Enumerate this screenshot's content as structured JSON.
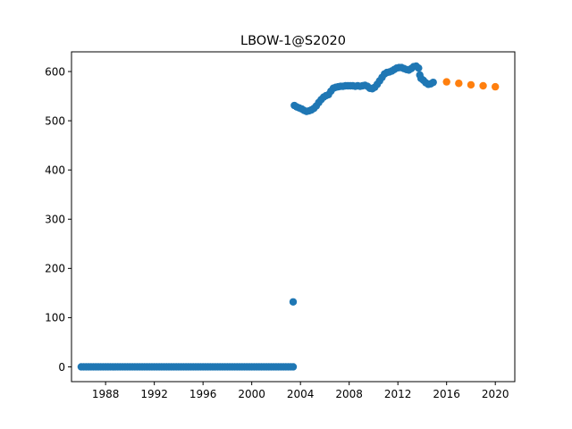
{
  "chart_data": {
    "type": "scatter",
    "title": "LBOW-1@S2020",
    "xlabel": "",
    "ylabel": "",
    "xlim": [
      1985.2,
      2021.6
    ],
    "ylim": [
      -30,
      640
    ],
    "x_ticks": [
      1988,
      1992,
      1996,
      2000,
      2004,
      2008,
      2012,
      2016,
      2020
    ],
    "y_ticks": [
      0,
      100,
      200,
      300,
      400,
      500,
      600
    ],
    "grid": false,
    "legend": "none",
    "colors": [
      "#1f77b4",
      "#ff7f0e"
    ],
    "series": [
      {
        "points": [
          [
            1986.0,
            0
          ],
          [
            1986.2,
            0
          ],
          [
            1986.4,
            0
          ],
          [
            1986.6,
            0
          ],
          [
            1986.8,
            0
          ],
          [
            1987.0,
            0
          ],
          [
            1987.2,
            0
          ],
          [
            1987.4,
            0
          ],
          [
            1987.6,
            0
          ],
          [
            1987.8,
            0
          ],
          [
            1988.0,
            0
          ],
          [
            1988.2,
            0
          ],
          [
            1988.4,
            0
          ],
          [
            1988.6,
            0
          ],
          [
            1988.8,
            0
          ],
          [
            1989.0,
            0
          ],
          [
            1989.2,
            0
          ],
          [
            1989.4,
            0
          ],
          [
            1989.6,
            0
          ],
          [
            1989.8,
            0
          ],
          [
            1990.0,
            0
          ],
          [
            1990.2,
            0
          ],
          [
            1990.4,
            0
          ],
          [
            1990.6,
            0
          ],
          [
            1990.8,
            0
          ],
          [
            1991.0,
            0
          ],
          [
            1991.2,
            0
          ],
          [
            1991.4,
            0
          ],
          [
            1991.6,
            0
          ],
          [
            1991.8,
            0
          ],
          [
            1992.0,
            0
          ],
          [
            1992.2,
            0
          ],
          [
            1992.4,
            0
          ],
          [
            1992.6,
            0
          ],
          [
            1992.8,
            0
          ],
          [
            1993.0,
            0
          ],
          [
            1993.2,
            0
          ],
          [
            1993.4,
            0
          ],
          [
            1993.6,
            0
          ],
          [
            1993.8,
            0
          ],
          [
            1994.0,
            0
          ],
          [
            1994.2,
            0
          ],
          [
            1994.4,
            0
          ],
          [
            1994.6,
            0
          ],
          [
            1994.8,
            0
          ],
          [
            1995.0,
            0
          ],
          [
            1995.2,
            0
          ],
          [
            1995.4,
            0
          ],
          [
            1995.6,
            0
          ],
          [
            1995.8,
            0
          ],
          [
            1996.0,
            0
          ],
          [
            1996.2,
            0
          ],
          [
            1996.4,
            0
          ],
          [
            1996.6,
            0
          ],
          [
            1996.8,
            0
          ],
          [
            1997.0,
            0
          ],
          [
            1997.2,
            0
          ],
          [
            1997.4,
            0
          ],
          [
            1997.6,
            0
          ],
          [
            1997.8,
            0
          ],
          [
            1998.0,
            0
          ],
          [
            1998.2,
            0
          ],
          [
            1998.4,
            0
          ],
          [
            1998.6,
            0
          ],
          [
            1998.8,
            0
          ],
          [
            1999.0,
            0
          ],
          [
            1999.2,
            0
          ],
          [
            1999.4,
            0
          ],
          [
            1999.6,
            0
          ],
          [
            1999.8,
            0
          ],
          [
            2000.0,
            0
          ],
          [
            2000.2,
            0
          ],
          [
            2000.4,
            0
          ],
          [
            2000.6,
            0
          ],
          [
            2000.8,
            0
          ],
          [
            2001.0,
            0
          ],
          [
            2001.2,
            0
          ],
          [
            2001.4,
            0
          ],
          [
            2001.6,
            0
          ],
          [
            2001.8,
            0
          ],
          [
            2002.0,
            0
          ],
          [
            2002.2,
            0
          ],
          [
            2002.4,
            0
          ],
          [
            2002.6,
            0
          ],
          [
            2002.8,
            0
          ],
          [
            2003.0,
            0
          ],
          [
            2003.2,
            0
          ],
          [
            2003.4,
            0
          ],
          [
            2003.4,
            132
          ],
          [
            2003.5,
            531
          ],
          [
            2003.7,
            528
          ],
          [
            2003.9,
            526
          ],
          [
            2004.1,
            524
          ],
          [
            2004.3,
            521
          ],
          [
            2004.5,
            519
          ],
          [
            2004.7,
            520
          ],
          [
            2004.9,
            522
          ],
          [
            2005.1,
            525
          ],
          [
            2005.3,
            530
          ],
          [
            2005.5,
            537
          ],
          [
            2005.7,
            543
          ],
          [
            2005.9,
            548
          ],
          [
            2006.1,
            551
          ],
          [
            2006.3,
            553
          ],
          [
            2006.5,
            560
          ],
          [
            2006.7,
            566
          ],
          [
            2006.9,
            568
          ],
          [
            2007.1,
            569
          ],
          [
            2007.3,
            570
          ],
          [
            2007.5,
            570
          ],
          [
            2007.7,
            571
          ],
          [
            2007.9,
            571
          ],
          [
            2008.1,
            571
          ],
          [
            2008.3,
            571
          ],
          [
            2008.5,
            570
          ],
          [
            2008.7,
            571
          ],
          [
            2008.9,
            570
          ],
          [
            2009.1,
            571
          ],
          [
            2009.3,
            572
          ],
          [
            2009.5,
            570
          ],
          [
            2009.7,
            566
          ],
          [
            2009.9,
            565
          ],
          [
            2010.1,
            568
          ],
          [
            2010.3,
            574
          ],
          [
            2010.5,
            581
          ],
          [
            2010.7,
            588
          ],
          [
            2010.9,
            595
          ],
          [
            2011.1,
            598
          ],
          [
            2011.3,
            599
          ],
          [
            2011.5,
            601
          ],
          [
            2011.7,
            604
          ],
          [
            2011.9,
            607
          ],
          [
            2012.1,
            608
          ],
          [
            2012.3,
            608
          ],
          [
            2012.5,
            606
          ],
          [
            2012.7,
            604
          ],
          [
            2012.9,
            603
          ],
          [
            2013.1,
            606
          ],
          [
            2013.3,
            610
          ],
          [
            2013.5,
            611
          ],
          [
            2013.7,
            607
          ],
          [
            2013.8,
            593
          ],
          [
            2013.9,
            586
          ],
          [
            2014.1,
            582
          ],
          [
            2014.3,
            577
          ],
          [
            2014.5,
            574
          ],
          [
            2014.7,
            575
          ],
          [
            2014.9,
            578
          ]
        ]
      },
      {
        "points": [
          [
            2016,
            579
          ],
          [
            2017,
            576
          ],
          [
            2018,
            573
          ],
          [
            2019,
            571
          ],
          [
            2020,
            569
          ]
        ]
      }
    ]
  }
}
